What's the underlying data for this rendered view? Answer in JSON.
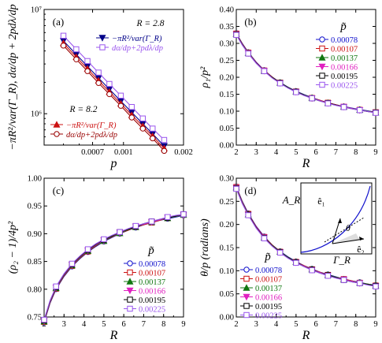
{
  "colors": {
    "axis": "#000000",
    "blue": "#1111cc",
    "red": "#cc1111",
    "green": "#117711",
    "magenta": "#e020c0",
    "black": "#000000",
    "purple": "#9a55ee",
    "navy": "#000088",
    "darkred": "#990000"
  },
  "chart_data": [
    {
      "panel": "(a)",
      "type": "line",
      "title": "",
      "xlabel": "p",
      "ylabel": "−πR²/var(Γ_R),  dα/dp + 2pdλ/dp",
      "xscale": "log",
      "yscale": "log",
      "xlim": [
        0.0004,
        0.002
      ],
      "ylim": [
        500000,
        10000000
      ],
      "x_ticks": [
        0.0007,
        0.001,
        0.002
      ],
      "x_tick_labels": [
        "0.0007",
        "0.001",
        "0.002"
      ],
      "y_ticks": [
        1000000,
        10000000
      ],
      "y_tick_labels": [
        "10⁶",
        "10⁷"
      ],
      "annotations": [
        "R = 2.8",
        "R = 8.2"
      ],
      "x": [
        0.0005,
        0.00058,
        0.00066,
        0.00075,
        0.00085,
        0.00097,
        0.0011,
        0.00125,
        0.0014,
        0.0016
      ],
      "series": [
        {
          "name": "−πR²/var(Γ_R)",
          "group": "R = 2.8",
          "color": "navy",
          "marker": "tri-down",
          "values": [
            5000000.0,
            3700000.0,
            2850000.0,
            2200000.0,
            1720000.0,
            1320000.0,
            1030000.0,
            800000.0,
            640000.0,
            490000.0
          ]
        },
        {
          "name": "dα/dp+2pdλ/dp",
          "group": "R = 2.8",
          "color": "purple",
          "marker": "square",
          "values": [
            5600000.0,
            4150000.0,
            3200000.0,
            2480000.0,
            1930000.0,
            1490000.0,
            1160000.0,
            900000.0,
            720000.0,
            560000.0
          ]
        },
        {
          "name": "−πR²/var(Γ_R)",
          "group": "R = 8.2",
          "color": "red",
          "marker": "tri-up",
          "values": [
            4750000.0,
            3500000.0,
            2700000.0,
            2080000.0,
            1620000.0,
            1250000.0,
            970000.0,
            760000.0,
            610000.0,
            465000.0
          ]
        },
        {
          "name": "dα/dp+2pdλ/dp",
          "group": "R = 8.2",
          "color": "darkred",
          "marker": "circle",
          "values": [
            4500000.0,
            3320000.0,
            2560000.0,
            1970000.0,
            1540000.0,
            1190000.0,
            920000.0,
            720000.0,
            580000.0,
            440000.0
          ]
        }
      ]
    },
    {
      "panel": "(b)",
      "type": "line",
      "xlabel": "R",
      "ylabel": "ρ₁/p²",
      "xlim": [
        2,
        9
      ],
      "ylim": [
        0,
        0.4
      ],
      "x_ticks": [
        2,
        3,
        4,
        5,
        6,
        7,
        8,
        9
      ],
      "y_ticks": [
        0,
        0.05,
        0.1,
        0.15,
        0.2,
        0.25,
        0.3,
        0.35,
        0.4
      ],
      "y_tick_labels": [
        "0.00",
        "0.05",
        "0.10",
        "0.15",
        "0.20",
        "0.25",
        "0.30",
        "0.35",
        "0.40"
      ],
      "legend_title": "p̃",
      "legend_position": "top-right",
      "x": [
        2.0,
        2.3,
        2.6,
        3.0,
        3.4,
        3.8,
        4.2,
        4.6,
        5.0,
        5.4,
        5.8,
        6.2,
        6.6,
        7.0,
        7.4,
        7.8,
        8.2,
        8.6,
        9.0
      ],
      "series": [
        {
          "name": "0.00078",
          "color": "blue",
          "marker": "circle",
          "values": [
            0.33,
            0.3,
            0.274,
            0.245,
            0.221,
            0.201,
            0.185,
            0.171,
            0.159,
            0.149,
            0.14,
            0.132,
            0.125,
            0.119,
            0.114,
            0.109,
            0.105,
            0.101,
            0.097
          ]
        },
        {
          "name": "0.00107",
          "color": "red",
          "marker": "square",
          "values": [
            0.329,
            0.299,
            0.273,
            0.244,
            0.22,
            0.201,
            0.184,
            0.17,
            0.158,
            0.148,
            0.139,
            0.132,
            0.125,
            0.119,
            0.113,
            0.108,
            0.104,
            0.1,
            0.097
          ]
        },
        {
          "name": "0.00137",
          "color": "green",
          "marker": "tri-up",
          "values": [
            0.328,
            0.298,
            0.272,
            0.243,
            0.219,
            0.2,
            0.184,
            0.17,
            0.158,
            0.148,
            0.139,
            0.131,
            0.124,
            0.118,
            0.113,
            0.108,
            0.104,
            0.1,
            0.096
          ]
        },
        {
          "name": "0.00166",
          "color": "magenta",
          "marker": "tri-down",
          "values": [
            0.327,
            0.297,
            0.271,
            0.243,
            0.219,
            0.199,
            0.183,
            0.169,
            0.157,
            0.147,
            0.138,
            0.131,
            0.124,
            0.118,
            0.113,
            0.108,
            0.103,
            0.099,
            0.096
          ]
        },
        {
          "name": "0.00195",
          "color": "black",
          "marker": "square",
          "values": [
            0.326,
            0.296,
            0.27,
            0.242,
            0.218,
            0.199,
            0.183,
            0.169,
            0.157,
            0.147,
            0.138,
            0.13,
            0.124,
            0.118,
            0.112,
            0.107,
            0.103,
            0.099,
            0.096
          ]
        },
        {
          "name": "0.00225",
          "color": "purple",
          "marker": "square",
          "values": [
            0.325,
            0.295,
            0.27,
            0.241,
            0.218,
            0.198,
            0.182,
            0.168,
            0.156,
            0.146,
            0.138,
            0.13,
            0.123,
            0.117,
            0.112,
            0.107,
            0.103,
            0.099,
            0.095
          ]
        }
      ]
    },
    {
      "panel": "(c)",
      "type": "line",
      "xlabel": "R",
      "ylabel": "(ρ₂ − 1)/4p²",
      "xlim": [
        2,
        9
      ],
      "ylim": [
        0.75,
        1.0
      ],
      "x_ticks": [
        2,
        3,
        4,
        5,
        6,
        7,
        8,
        9
      ],
      "y_ticks": [
        0.75,
        0.8,
        0.85,
        0.9,
        0.95,
        1.0
      ],
      "y_tick_labels": [
        "0.75",
        "0.80",
        "0.85",
        "0.90",
        "0.95",
        "1.00"
      ],
      "legend_title": "p̃",
      "legend_position": "bottom-right",
      "x": [
        2.0,
        2.3,
        2.6,
        3.0,
        3.4,
        3.8,
        4.2,
        4.6,
        5.0,
        5.4,
        5.8,
        6.2,
        6.6,
        7.0,
        7.4,
        7.8,
        8.2,
        8.6,
        9.0
      ],
      "series": [
        {
          "name": "0.00078",
          "color": "blue",
          "marker": "circle",
          "values": [
            0.74,
            0.775,
            0.8,
            0.823,
            0.841,
            0.855,
            0.867,
            0.877,
            0.886,
            0.893,
            0.9,
            0.906,
            0.911,
            0.916,
            0.92,
            0.924,
            0.927,
            0.93,
            0.933
          ]
        },
        {
          "name": "0.00107",
          "color": "red",
          "marker": "square",
          "values": [
            0.741,
            0.776,
            0.801,
            0.824,
            0.842,
            0.856,
            0.868,
            0.878,
            0.887,
            0.894,
            0.901,
            0.906,
            0.912,
            0.916,
            0.92,
            0.924,
            0.928,
            0.931,
            0.934
          ]
        },
        {
          "name": "0.00137",
          "color": "green",
          "marker": "tri-up",
          "values": [
            0.742,
            0.777,
            0.802,
            0.825,
            0.843,
            0.857,
            0.869,
            0.879,
            0.887,
            0.895,
            0.901,
            0.907,
            0.912,
            0.917,
            0.921,
            0.925,
            0.928,
            0.931,
            0.934
          ]
        },
        {
          "name": "0.00166",
          "color": "magenta",
          "marker": "tri-down",
          "values": [
            0.743,
            0.778,
            0.803,
            0.826,
            0.844,
            0.858,
            0.87,
            0.88,
            0.888,
            0.896,
            0.902,
            0.908,
            0.913,
            0.917,
            0.921,
            0.925,
            0.929,
            0.932,
            0.934
          ]
        },
        {
          "name": "0.00195",
          "color": "black",
          "marker": "square",
          "values": [
            0.744,
            0.779,
            0.804,
            0.827,
            0.845,
            0.859,
            0.871,
            0.881,
            0.889,
            0.896,
            0.903,
            0.908,
            0.913,
            0.918,
            0.922,
            0.926,
            0.929,
            0.932,
            0.935
          ]
        },
        {
          "name": "0.00225",
          "color": "purple",
          "marker": "square",
          "values": [
            0.745,
            0.78,
            0.805,
            0.828,
            0.846,
            0.86,
            0.872,
            0.882,
            0.89,
            0.897,
            0.903,
            0.909,
            0.914,
            0.918,
            0.922,
            0.926,
            0.93,
            0.933,
            0.935
          ]
        }
      ]
    },
    {
      "panel": "(d)",
      "type": "line",
      "xlabel": "R",
      "ylabel": "θ/p  (radians)",
      "xlim": [
        2,
        9
      ],
      "ylim": [
        0,
        0.3
      ],
      "x_ticks": [
        2,
        3,
        4,
        5,
        6,
        7,
        8,
        9
      ],
      "y_ticks": [
        0,
        0.05,
        0.1,
        0.15,
        0.2,
        0.25,
        0.3
      ],
      "y_tick_labels": [
        "0.00",
        "0.05",
        "0.10",
        "0.15",
        "0.20",
        "0.25",
        "0.30"
      ],
      "legend_title": "p̃",
      "legend_position": "bottom-left",
      "inset_labels": {
        "y": "A_R",
        "x": "Γ_R",
        "e1": "ê₁",
        "e2": "ê₂",
        "theta": "θ"
      },
      "x": [
        2.0,
        2.3,
        2.6,
        3.0,
        3.4,
        3.8,
        4.2,
        4.6,
        5.0,
        5.4,
        5.8,
        6.2,
        6.6,
        7.0,
        7.4,
        7.8,
        8.2,
        8.6,
        9.0
      ],
      "series": [
        {
          "name": "0.00078",
          "color": "blue",
          "marker": "circle",
          "values": [
            0.282,
            0.25,
            0.224,
            0.196,
            0.174,
            0.156,
            0.142,
            0.13,
            0.12,
            0.111,
            0.104,
            0.097,
            0.092,
            0.087,
            0.082,
            0.078,
            0.075,
            0.071,
            0.069
          ]
        },
        {
          "name": "0.00107",
          "color": "red",
          "marker": "square",
          "values": [
            0.281,
            0.249,
            0.223,
            0.195,
            0.173,
            0.156,
            0.141,
            0.129,
            0.119,
            0.111,
            0.103,
            0.097,
            0.091,
            0.086,
            0.082,
            0.078,
            0.074,
            0.071,
            0.068
          ]
        },
        {
          "name": "0.00137",
          "color": "green",
          "marker": "tri-up",
          "values": [
            0.28,
            0.248,
            0.222,
            0.194,
            0.172,
            0.155,
            0.141,
            0.129,
            0.119,
            0.11,
            0.103,
            0.096,
            0.091,
            0.086,
            0.081,
            0.077,
            0.074,
            0.071,
            0.068
          ]
        },
        {
          "name": "0.00166",
          "color": "magenta",
          "marker": "tri-down",
          "values": [
            0.279,
            0.247,
            0.221,
            0.194,
            0.172,
            0.154,
            0.14,
            0.128,
            0.118,
            0.11,
            0.102,
            0.096,
            0.09,
            0.085,
            0.081,
            0.077,
            0.073,
            0.07,
            0.067
          ]
        },
        {
          "name": "0.00195",
          "color": "black",
          "marker": "square",
          "values": [
            0.278,
            0.246,
            0.221,
            0.193,
            0.171,
            0.154,
            0.14,
            0.128,
            0.118,
            0.109,
            0.102,
            0.095,
            0.09,
            0.085,
            0.08,
            0.076,
            0.073,
            0.07,
            0.067
          ]
        },
        {
          "name": "0.00225",
          "color": "purple",
          "marker": "square",
          "values": [
            0.277,
            0.245,
            0.22,
            0.192,
            0.17,
            0.153,
            0.139,
            0.127,
            0.117,
            0.109,
            0.101,
            0.095,
            0.089,
            0.084,
            0.08,
            0.076,
            0.073,
            0.069,
            0.066
          ]
        }
      ]
    }
  ]
}
